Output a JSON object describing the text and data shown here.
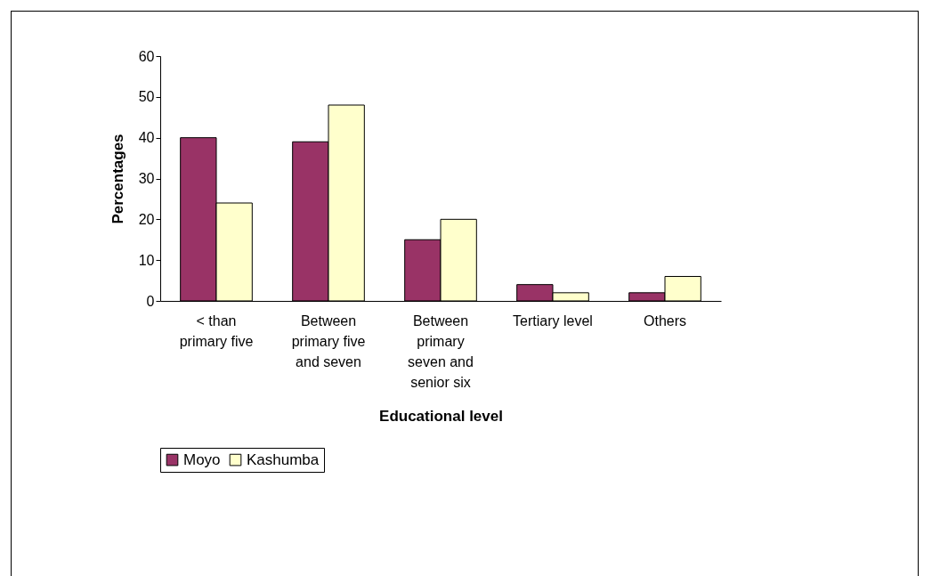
{
  "chart_data": {
    "type": "bar",
    "xlabel": "Educational level",
    "ylabel": "Percentages",
    "categories": [
      "< than primary five",
      "Between primary five and seven",
      "Between primary seven and senior six",
      "Tertiary level",
      "Others"
    ],
    "series": [
      {
        "name": "Moyo",
        "color": "#993366",
        "values": [
          40,
          39,
          15,
          4,
          2
        ]
      },
      {
        "name": "Kashumba",
        "color": "#ffffcc",
        "values": [
          24,
          48,
          20,
          2,
          6
        ]
      }
    ],
    "ylim": [
      0,
      60
    ],
    "yticks": [
      0,
      10,
      20,
      30,
      40,
      50,
      60
    ],
    "grid": false,
    "legend": "bottom"
  }
}
